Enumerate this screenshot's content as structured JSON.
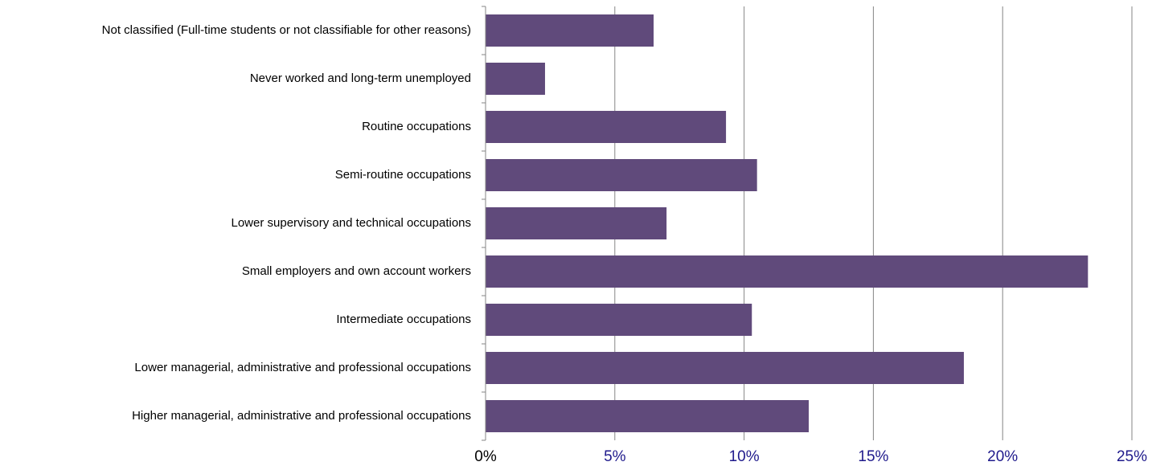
{
  "chart_data": {
    "type": "bar",
    "orientation": "horizontal",
    "categories": [
      "Not classified (Full-time students or not classifiable for other reasons)",
      "Never worked and long-term unemployed",
      "Routine occupations",
      "Semi-routine occupations",
      "Lower supervisory and technical occupations",
      "Small employers and own account workers",
      "Intermediate occupations",
      "Lower managerial, administrative and professional occupations",
      "Higher managerial, administrative and professional occupations"
    ],
    "values": [
      6.5,
      2.3,
      9.3,
      10.5,
      7.0,
      23.3,
      10.3,
      18.5,
      12.5
    ],
    "xlim": [
      0,
      25
    ],
    "x_ticks": [
      0,
      5,
      10,
      15,
      20,
      25
    ],
    "x_tick_labels": [
      "0%",
      "5%",
      "10%",
      "15%",
      "20%",
      "25%"
    ],
    "grid": "vertical",
    "title": "",
    "xlabel": "",
    "ylabel": "",
    "colors": {
      "bar": "#604a7b",
      "grid": "#868686",
      "axis": "#868686",
      "category_text": "#000000",
      "tick_zero": "#000000",
      "tick_other": "#1f1a8c"
    }
  }
}
